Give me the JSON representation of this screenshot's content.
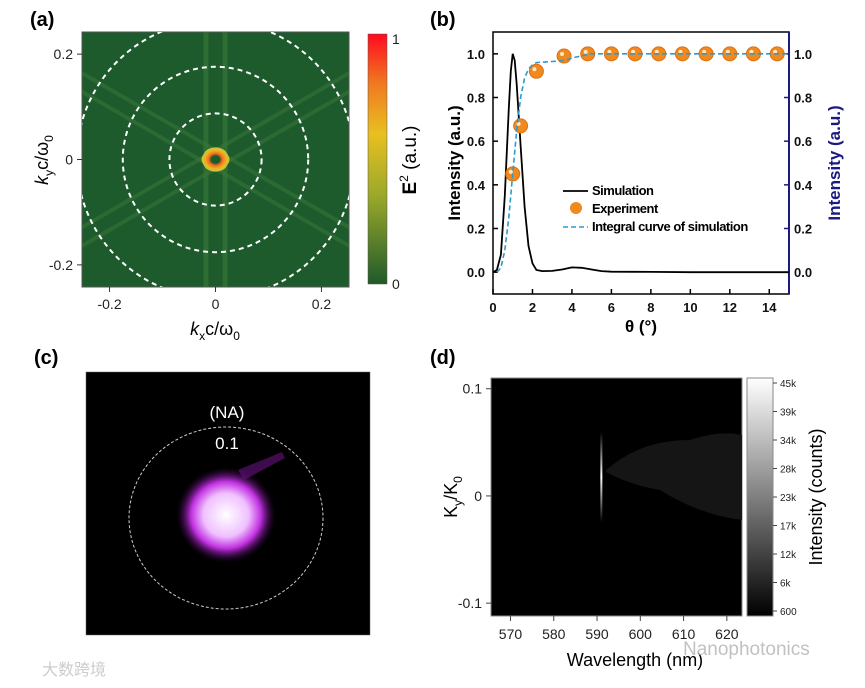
{
  "chart_data": [
    {
      "panel": "(a)",
      "type": "heatmap",
      "xlabel": "k",
      "xlabel_sub": "x",
      "xlabel_rest": "c/ω",
      "xlabel_rest_sub": "0",
      "ylabel": "k",
      "ylabel_sub": "y",
      "ylabel_rest": "c/ω",
      "ylabel_rest_sub": "0",
      "xlim": [
        -0.252,
        0.252
      ],
      "ylim": [
        -0.242,
        0.242
      ],
      "xticks": [
        -0.2,
        0,
        0.2
      ],
      "xtick_labels": [
        "-0.2",
        "0",
        "0.2"
      ],
      "yticks": [
        -0.2,
        0,
        0.2
      ],
      "ytick_labels": [
        "-0.2",
        "0",
        "0.2"
      ],
      "dashed_circle_radii": [
        0.087,
        0.175,
        0.262
      ],
      "colorbar": {
        "label": "E",
        "label_sup": "2",
        "label_rest": " (a.u.)",
        "min_label": "0",
        "max_label": "1",
        "colors": [
          "#1f5a2a",
          "#d6c52a",
          "#f0a020",
          "#f05a20",
          "#ff0020"
        ]
      },
      "background_color": "#1d5a2c"
    },
    {
      "panel": "(b)",
      "type": "line",
      "xlabel": "θ (°)",
      "ylabel_left": "Intensity (a.u.)",
      "ylabel_right": "Intensity (a.u.)",
      "xlim": [
        0,
        15
      ],
      "ylim": [
        -0.1,
        1.1
      ],
      "xticks": [
        0,
        2,
        4,
        6,
        8,
        10,
        12,
        14
      ],
      "yticks": [
        0.0,
        0.2,
        0.4,
        0.6,
        0.8,
        1.0
      ],
      "ytick_labels": [
        "0.0",
        "0.2",
        "0.4",
        "0.6",
        "0.8",
        "1.0"
      ],
      "right_axis_color": "#1a1a80",
      "series": [
        {
          "name": "Simulation",
          "style": "solid",
          "color": "#000000",
          "x": [
            0,
            0.2,
            0.4,
            0.6,
            0.8,
            0.9,
            1.0,
            1.1,
            1.2,
            1.4,
            1.6,
            1.8,
            2.0,
            2.2,
            2.5,
            3.0,
            3.5,
            4.0,
            4.5,
            5.0,
            5.5,
            6.0,
            8,
            10,
            12,
            15
          ],
          "y": [
            0,
            0.01,
            0.08,
            0.35,
            0.75,
            0.92,
            1.0,
            0.97,
            0.86,
            0.58,
            0.3,
            0.12,
            0.04,
            0.01,
            0.005,
            0.006,
            0.012,
            0.022,
            0.02,
            0.012,
            0.005,
            0.002,
            0.001,
            0,
            0,
            0
          ]
        },
        {
          "name": "Experiment",
          "style": "marker",
          "color": "#f08a1e",
          "x": [
            1.0,
            1.4,
            2.2,
            3.6,
            4.8,
            6.0,
            7.2,
            8.4,
            9.6,
            10.8,
            12.0,
            13.2,
            14.4
          ],
          "y": [
            0.45,
            0.67,
            0.92,
            0.99,
            1.0,
            1.0,
            1.0,
            1.0,
            1.0,
            1.0,
            1.0,
            1.0,
            1.0
          ]
        },
        {
          "name": "Integral curve of simulation",
          "style": "dashed",
          "color": "#2a9bd0",
          "x": [
            0.2,
            0.4,
            0.6,
            0.8,
            1.0,
            1.2,
            1.4,
            1.6,
            1.8,
            2.0,
            2.2,
            3.0,
            3.6,
            4.2,
            5.0,
            6.0,
            15
          ],
          "y": [
            0,
            0.02,
            0.1,
            0.25,
            0.45,
            0.65,
            0.8,
            0.89,
            0.93,
            0.95,
            0.96,
            0.965,
            0.97,
            0.985,
            1.0,
            1.0,
            1.0
          ]
        }
      ],
      "legend": [
        "Simulation",
        "Experiment",
        "Integral curve of simulation"
      ],
      "legend_position": "center-right"
    },
    {
      "panel": "(c)",
      "type": "image",
      "annotation_line1": "(NA)",
      "annotation_line2": "0.1",
      "spot_color": "#c030e0"
    },
    {
      "panel": "(d)",
      "type": "heatmap",
      "xlabel": "Wavelength (nm)",
      "ylabel": "K",
      "ylabel_sub": "y",
      "ylabel_rest": "/K",
      "ylabel_rest_sub": "0",
      "xlim": [
        565.5,
        623.5
      ],
      "ylim": [
        -0.112,
        0.11
      ],
      "xticks": [
        570,
        580,
        590,
        600,
        610,
        620
      ],
      "yticks": [
        -0.1,
        0,
        0.1
      ],
      "ytick_labels": [
        "-0.1",
        "0",
        "0.1"
      ],
      "emission_line_wavelength": 591,
      "colorbar": {
        "label": "Intensity (counts)",
        "tick_labels": [
          "600",
          "6k",
          "12k",
          "17k",
          "23k",
          "28k",
          "34k",
          "39k",
          "45k"
        ]
      }
    }
  ],
  "watermarks": {
    "left": "大数跨境",
    "right": "Nanophotonics"
  }
}
